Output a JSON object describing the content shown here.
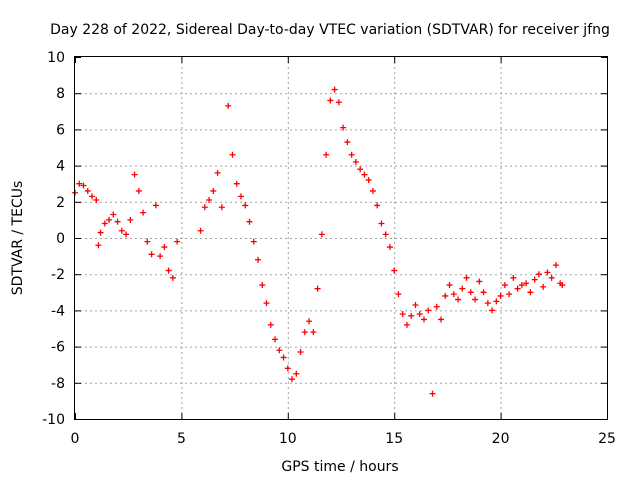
{
  "chart_data": {
    "type": "scatter",
    "title": "Day 228 of 2022, Sidereal Day-to-day VTEC variation (SDTVAR) for receiver jfng",
    "xlabel": "GPS time / hours",
    "ylabel": "SDTVAR / TECUs",
    "xlim": [
      0,
      25
    ],
    "ylim": [
      -10,
      10
    ],
    "xticks": [
      0,
      5,
      10,
      15,
      20,
      25
    ],
    "yticks": [
      -10,
      -8,
      -6,
      -4,
      -2,
      0,
      2,
      4,
      6,
      8,
      10
    ],
    "grid": true,
    "marker": "plus",
    "color": "#ff0000",
    "series": [
      {
        "name": "SDTVAR",
        "x": [
          0.0,
          0.2,
          0.4,
          0.6,
          0.8,
          1.0,
          1.1,
          1.2,
          1.4,
          1.6,
          1.8,
          2.0,
          2.2,
          2.4,
          2.6,
          2.8,
          3.0,
          3.2,
          3.4,
          3.6,
          3.8,
          4.0,
          4.2,
          4.4,
          4.6,
          4.8,
          5.9,
          6.1,
          6.3,
          6.5,
          6.7,
          6.9,
          7.2,
          7.4,
          7.6,
          7.8,
          8.0,
          8.2,
          8.4,
          8.6,
          8.8,
          9.0,
          9.2,
          9.4,
          9.6,
          9.8,
          10.0,
          10.2,
          10.4,
          10.6,
          10.8,
          11.0,
          11.2,
          11.4,
          11.6,
          11.8,
          12.0,
          12.2,
          12.4,
          12.6,
          12.8,
          13.0,
          13.2,
          13.4,
          13.6,
          13.8,
          14.0,
          14.2,
          14.4,
          14.6,
          14.8,
          15.0,
          15.2,
          15.4,
          15.6,
          15.8,
          16.0,
          16.2,
          16.4,
          16.6,
          16.8,
          17.0,
          17.2,
          17.4,
          17.6,
          17.8,
          18.0,
          18.2,
          18.4,
          18.6,
          18.8,
          19.0,
          19.2,
          19.4,
          19.6,
          19.8,
          20.0,
          20.2,
          20.4,
          20.6,
          20.8,
          21.0,
          21.2,
          21.4,
          21.6,
          21.8,
          22.0,
          22.2,
          22.4,
          22.6,
          22.8,
          22.9
        ],
        "y": [
          2.5,
          3.0,
          2.9,
          2.6,
          2.3,
          2.1,
          -0.4,
          0.3,
          0.8,
          1.0,
          1.3,
          0.9,
          0.4,
          0.2,
          1.0,
          3.5,
          2.6,
          1.4,
          -0.2,
          -0.9,
          1.8,
          -1.0,
          -0.5,
          -1.8,
          -2.2,
          -0.2,
          0.4,
          1.7,
          2.1,
          2.6,
          3.6,
          1.7,
          7.3,
          4.6,
          3.0,
          2.3,
          1.8,
          0.9,
          -0.2,
          -1.2,
          -2.6,
          -3.6,
          -4.8,
          -5.6,
          -6.2,
          -6.6,
          -7.2,
          -7.8,
          -7.5,
          -6.3,
          -5.2,
          -4.6,
          -5.2,
          -2.8,
          0.2,
          4.6,
          7.6,
          8.2,
          7.5,
          6.1,
          5.3,
          4.6,
          4.2,
          3.8,
          3.5,
          3.2,
          2.6,
          1.8,
          0.8,
          0.2,
          -0.5,
          -1.8,
          -3.1,
          -4.2,
          -4.8,
          -4.3,
          -3.7,
          -4.2,
          -4.5,
          -4.0,
          -8.6,
          -3.8,
          -4.5,
          -3.2,
          -2.6,
          -3.1,
          -3.4,
          -2.8,
          -2.2,
          -3.0,
          -3.4,
          -2.4,
          -3.0,
          -3.6,
          -4.0,
          -3.5,
          -3.2,
          -2.6,
          -3.1,
          -2.2,
          -2.8,
          -2.6,
          -2.5,
          -3.0,
          -2.3,
          -2.0,
          -2.7,
          -1.9,
          -2.2,
          -1.5,
          -2.5,
          -2.6
        ]
      }
    ]
  }
}
